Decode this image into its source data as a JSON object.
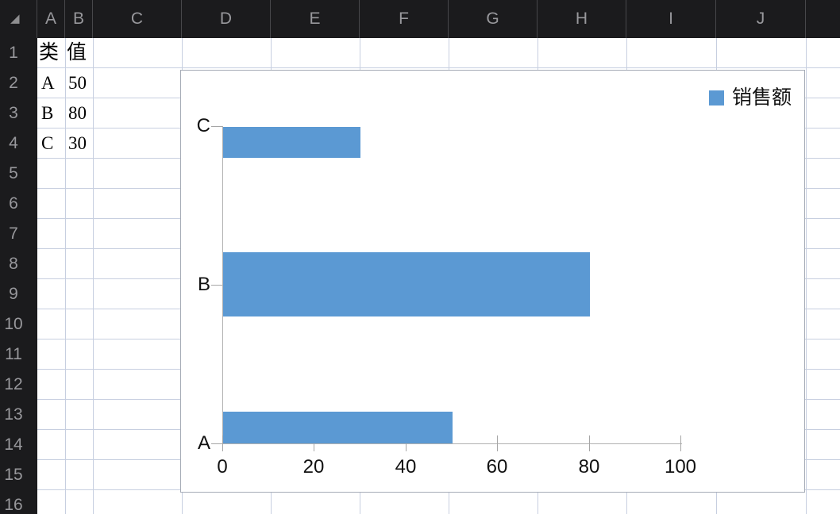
{
  "sheet": {
    "columns": [
      "A",
      "B",
      "C",
      "D",
      "E",
      "F",
      "G",
      "H",
      "I",
      "J"
    ],
    "rows": [
      "1",
      "2",
      "3",
      "4",
      "5",
      "6",
      "7",
      "8",
      "9",
      "10",
      "11",
      "12",
      "13",
      "14",
      "15",
      "16"
    ],
    "cells": {
      "A1": "类",
      "B1": "值",
      "A2": "A",
      "B2": "50",
      "A3": "B",
      "B3": "80",
      "A4": "C",
      "B4": "30"
    }
  },
  "chart_data": {
    "type": "bar",
    "orientation": "horizontal",
    "title": "",
    "categories": [
      "A",
      "B",
      "C"
    ],
    "series": [
      {
        "name": "销售额",
        "values": [
          50,
          80,
          30
        ]
      }
    ],
    "x_ticks": [
      "0",
      "20",
      "40",
      "60",
      "80",
      "100"
    ],
    "xlim": [
      0,
      100
    ],
    "legend_position": "top-right",
    "bar_color": "#5b99d3",
    "grid": false
  },
  "colors": {
    "header_bg": "#1b1b1d",
    "header_text": "#98989c",
    "grid_line": "#c7cfe0",
    "axis": "#b1b1b1",
    "accent_blue": "#5b99d3"
  }
}
